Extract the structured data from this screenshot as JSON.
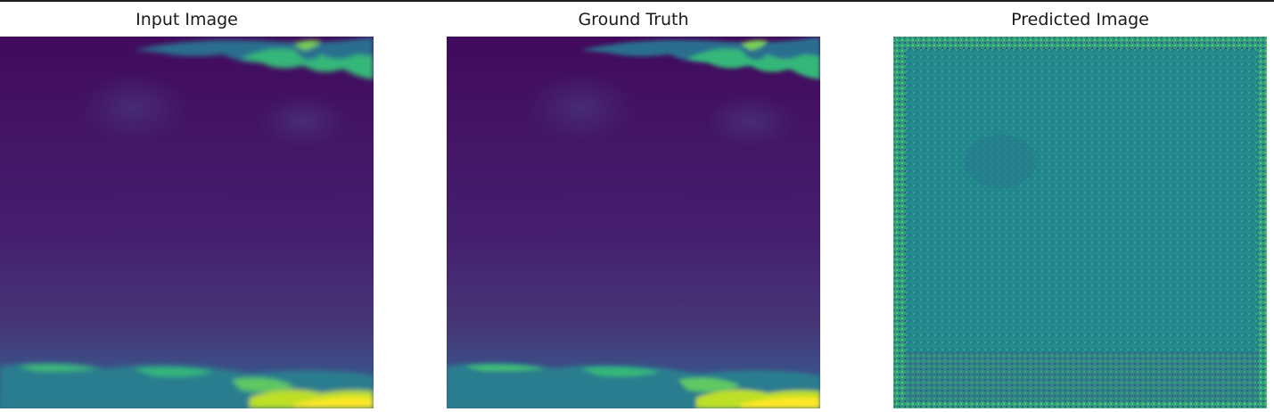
{
  "figure": {
    "panels": [
      {
        "title": "Input Image",
        "colormap": "viridis"
      },
      {
        "title": "Ground Truth",
        "colormap": "viridis"
      },
      {
        "title": "Predicted Image",
        "colormap": "viridis"
      }
    ]
  },
  "colors": {
    "dark": "#440154",
    "deep": "#3f1f68",
    "mid": "#2c728e",
    "teal": "#21918c",
    "green": "#5ec962",
    "yellow": "#fde725"
  }
}
